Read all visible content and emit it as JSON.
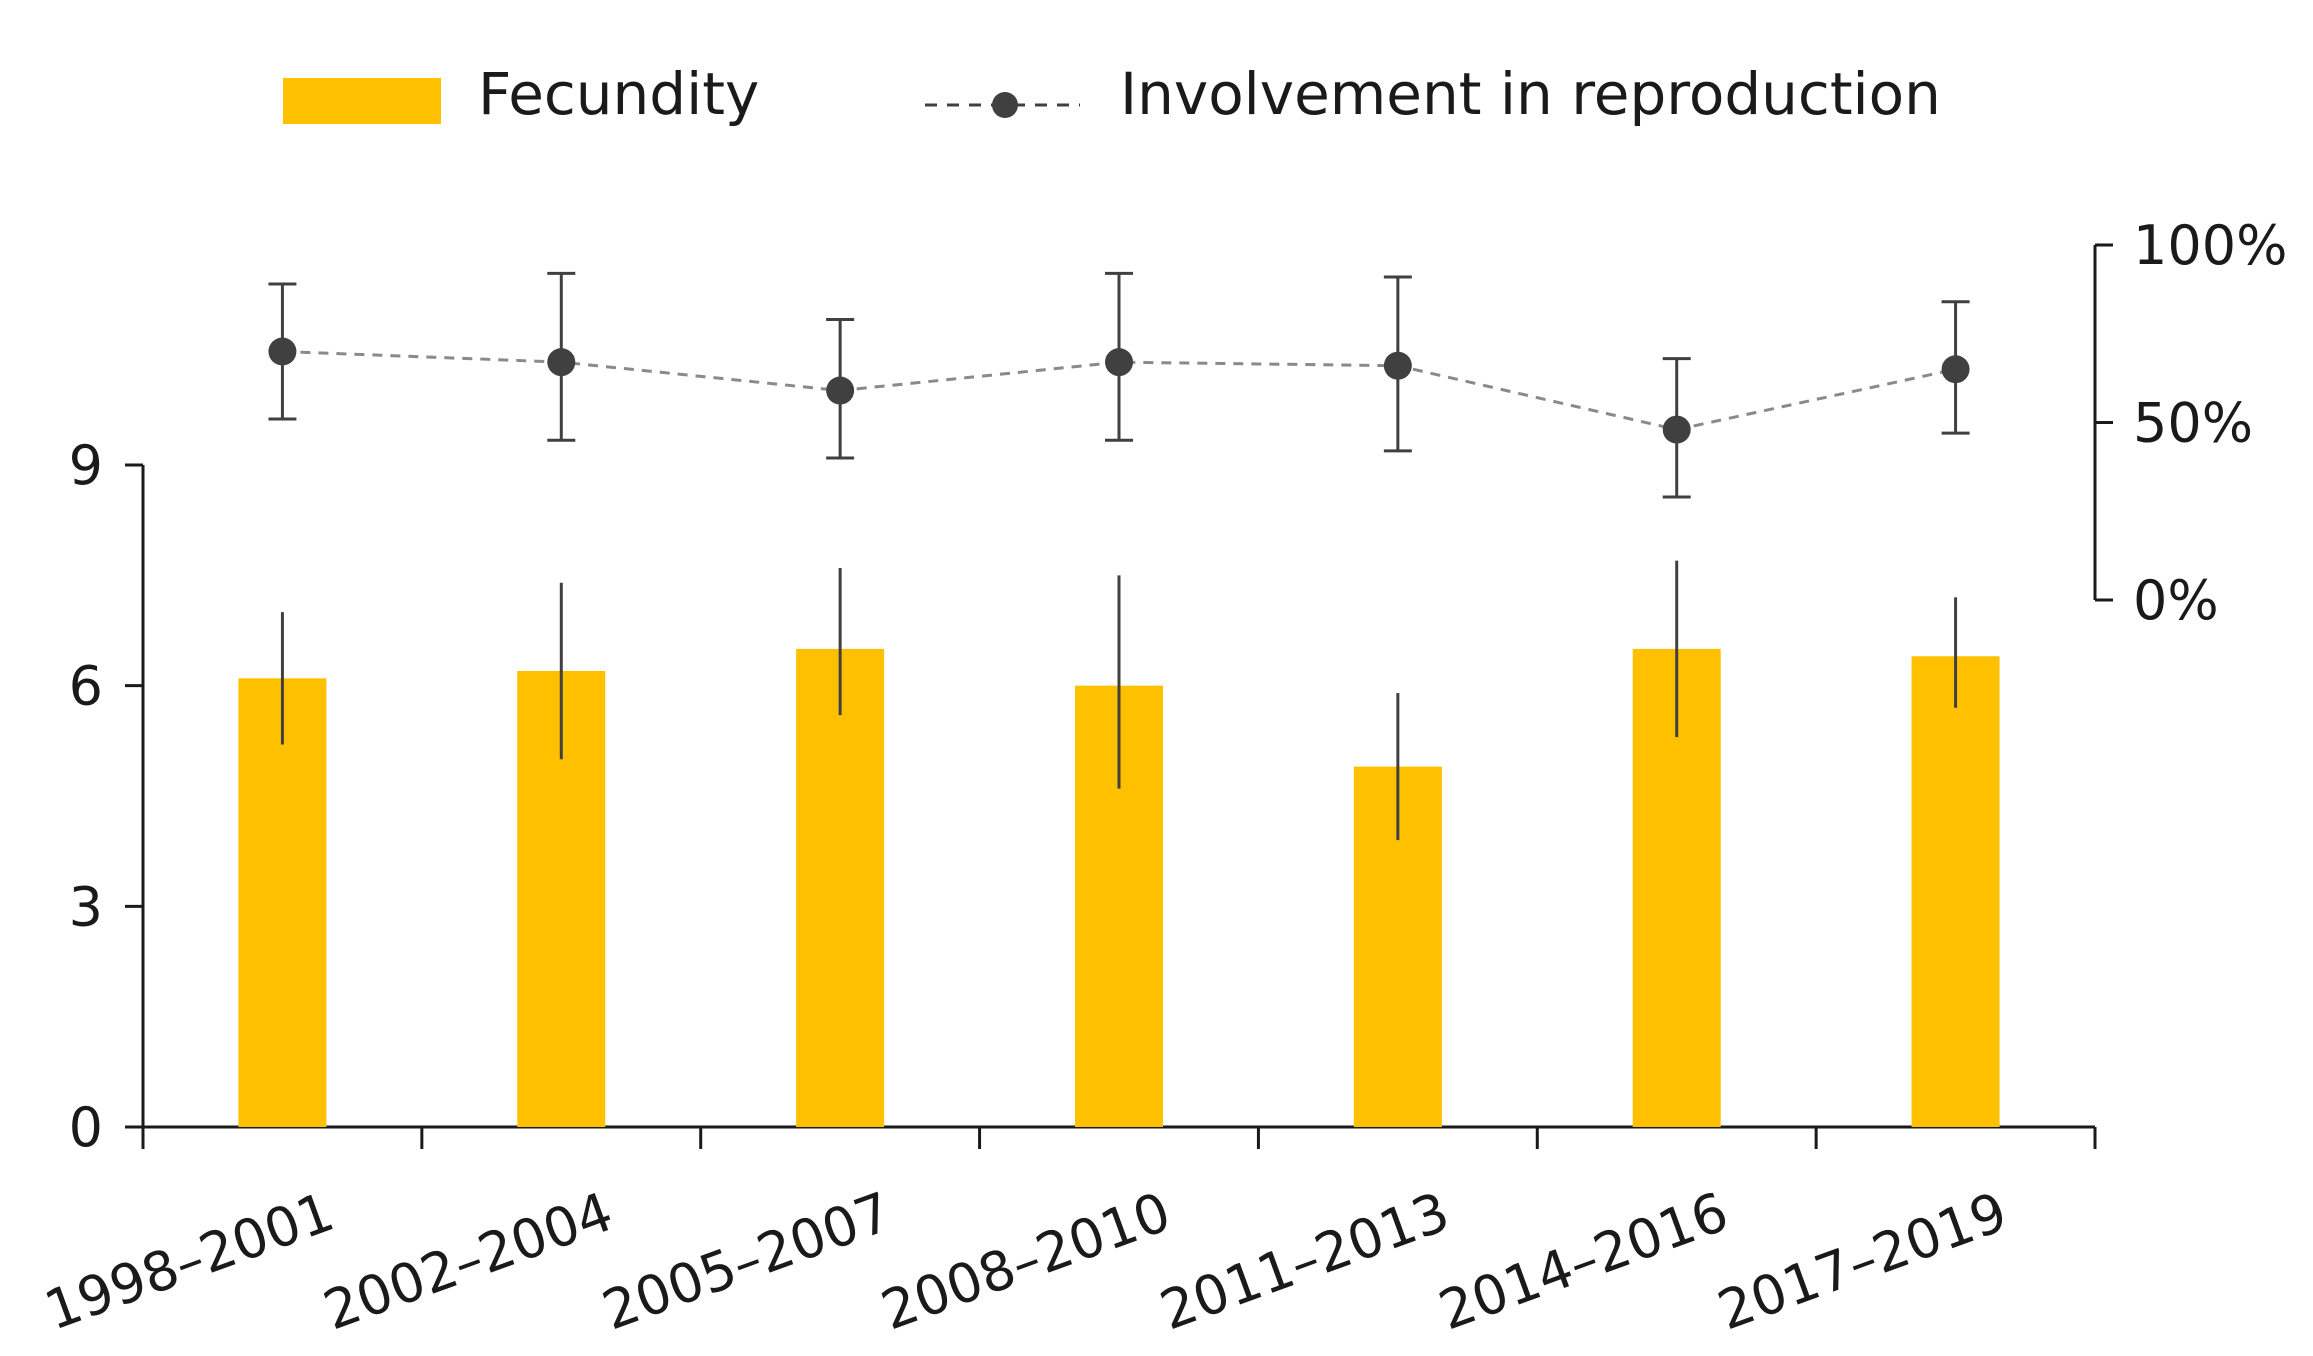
{
  "chart_data": {
    "type": "bar",
    "categories": [
      "1998–2001",
      "2002–2004",
      "2005–2007",
      "2008–2010",
      "2011–2013",
      "2014–2016",
      "2017–2019"
    ],
    "series": [
      {
        "name": "Fecundity",
        "kind": "bar",
        "axis": "left",
        "color": "#FFC000",
        "values": [
          6.1,
          6.2,
          6.5,
          6.0,
          4.9,
          6.5,
          6.4
        ],
        "error_low": [
          5.2,
          5.0,
          5.6,
          4.6,
          3.9,
          5.3,
          5.7
        ],
        "error_high": [
          7.0,
          7.4,
          7.6,
          7.5,
          5.9,
          7.7,
          7.2
        ]
      },
      {
        "name": "Involvement in reproduction",
        "kind": "line",
        "axis": "right",
        "color": "#404040",
        "line_style": "dashed",
        "values": [
          70,
          67,
          59,
          67,
          66,
          48,
          65
        ],
        "error_low": [
          51,
          45,
          40,
          45,
          42,
          29,
          47
        ],
        "error_high": [
          89,
          92,
          79,
          92,
          91,
          68,
          84
        ]
      }
    ],
    "y_left": {
      "ylim": [
        0,
        9
      ],
      "ticks": [
        "0",
        "3",
        "6",
        "9"
      ]
    },
    "y_right": {
      "ylim": [
        0,
        100
      ],
      "ticks": [
        "0%",
        "50%",
        "100%"
      ]
    },
    "legend": {
      "position": "top"
    },
    "title": "",
    "xlabel": "",
    "ylabel": ""
  }
}
